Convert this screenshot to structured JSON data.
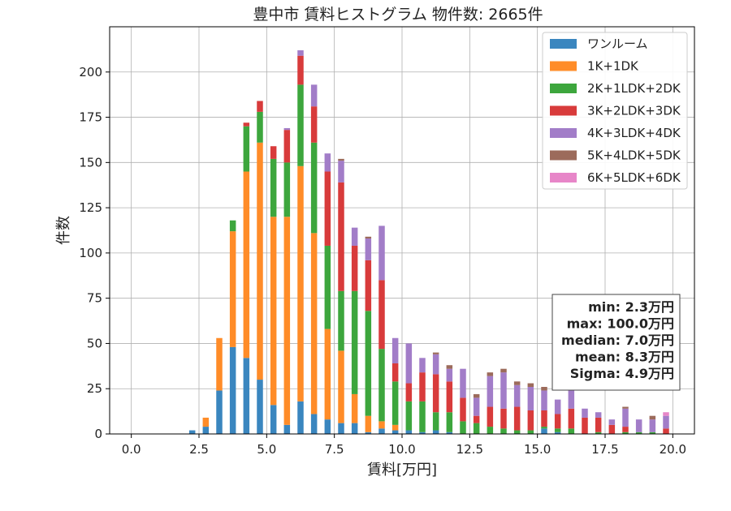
{
  "chart_data": {
    "type": "bar",
    "stacked": true,
    "title": "豊中市 賃料ヒストグラム 物件数: 2665件",
    "xlabel": "賃料[万円]",
    "ylabel": "件数",
    "xlim": [
      -0.8,
      20.8
    ],
    "ylim": [
      0,
      225
    ],
    "xticks": [
      0.0,
      2.5,
      5.0,
      7.5,
      10.0,
      12.5,
      15.0,
      17.5,
      20.0
    ],
    "xtick_labels": [
      "0.0",
      "2.5",
      "5.0",
      "7.5",
      "10.0",
      "12.5",
      "15.0",
      "17.5",
      "20.0"
    ],
    "yticks": [
      0,
      25,
      50,
      75,
      100,
      125,
      150,
      175,
      200
    ],
    "ytick_labels": [
      "0",
      "25",
      "50",
      "75",
      "100",
      "125",
      "150",
      "175",
      "200"
    ],
    "grid": true,
    "legend_position": "top-right",
    "bin_width": 0.25,
    "x": [
      2.0,
      2.25,
      2.5,
      2.75,
      3.0,
      3.25,
      3.5,
      3.75,
      4.0,
      4.25,
      4.5,
      4.75,
      5.0,
      5.25,
      5.5,
      5.75,
      6.0,
      6.25,
      6.5,
      6.75,
      7.0,
      7.25,
      7.5,
      7.75,
      8.0,
      8.25,
      8.5,
      8.75,
      9.0,
      9.25,
      9.5,
      9.75,
      10.0,
      10.25,
      10.5,
      10.75,
      11.0,
      11.25,
      11.5,
      11.75,
      12.0,
      12.25,
      12.5,
      12.75,
      13.0,
      13.25,
      13.5,
      13.75,
      14.0,
      14.25,
      14.5,
      14.75,
      15.0,
      15.25,
      15.5,
      15.75,
      16.0,
      16.25,
      16.5,
      16.75,
      17.0,
      17.25,
      17.5,
      17.75,
      18.0,
      18.25,
      18.5,
      18.75,
      19.0,
      19.25,
      19.5,
      19.75
    ],
    "series": [
      {
        "name": "ワンルーム",
        "color": "#3a86bf",
        "values": [
          0,
          2,
          0,
          4,
          0,
          24,
          0,
          48,
          0,
          42,
          0,
          30,
          0,
          16,
          0,
          5,
          0,
          18,
          0,
          11,
          0,
          8,
          0,
          6,
          0,
          6,
          0,
          1,
          0,
          3,
          0,
          2,
          0,
          2,
          0,
          1,
          0,
          2,
          0,
          1,
          0,
          0,
          0,
          0,
          0,
          0,
          0,
          0,
          0,
          0,
          0,
          0,
          0,
          3,
          0,
          1,
          0,
          0,
          0,
          0,
          0,
          0,
          0,
          0,
          0,
          0,
          0,
          0,
          0,
          0,
          0,
          0
        ]
      },
      {
        "name": "1K+1DK",
        "color": "#ff8c28",
        "values": [
          0,
          0,
          0,
          5,
          0,
          29,
          0,
          64,
          0,
          103,
          0,
          131,
          0,
          104,
          0,
          115,
          0,
          130,
          0,
          100,
          0,
          50,
          0,
          40,
          0,
          16,
          0,
          9,
          0,
          4,
          0,
          3,
          0,
          0,
          0,
          0,
          0,
          0,
          0,
          0,
          0,
          0,
          0,
          0,
          0,
          0,
          0,
          0,
          0,
          0,
          0,
          0,
          0,
          0,
          0,
          0,
          0,
          0,
          0,
          0,
          0,
          0,
          0,
          0,
          0,
          0,
          0,
          0,
          0,
          0,
          0,
          0
        ]
      },
      {
        "name": "2K+1LDK+2DK",
        "color": "#3da63d",
        "values": [
          0,
          0,
          0,
          0,
          0,
          0,
          0,
          6,
          0,
          25,
          0,
          17,
          0,
          32,
          0,
          30,
          0,
          45,
          0,
          50,
          0,
          46,
          0,
          33,
          0,
          57,
          0,
          58,
          0,
          40,
          0,
          24,
          0,
          16,
          0,
          17,
          0,
          10,
          0,
          11,
          0,
          7,
          0,
          6,
          0,
          4,
          0,
          3,
          0,
          2,
          0,
          2,
          0,
          1,
          0,
          2,
          0,
          3,
          0,
          0,
          0,
          1,
          0,
          0,
          0,
          1,
          0,
          1,
          0,
          1,
          0,
          0
        ]
      },
      {
        "name": "3K+2LDK+3DK",
        "color": "#d83b3b",
        "values": [
          0,
          0,
          0,
          0,
          0,
          0,
          0,
          0,
          0,
          2,
          0,
          6,
          0,
          7,
          0,
          18,
          0,
          16,
          0,
          20,
          0,
          41,
          0,
          60,
          0,
          25,
          0,
          28,
          0,
          38,
          0,
          10,
          0,
          10,
          0,
          16,
          0,
          21,
          0,
          17,
          0,
          13,
          0,
          4,
          0,
          11,
          0,
          11,
          0,
          13,
          0,
          11,
          0,
          9,
          0,
          8,
          0,
          11,
          0,
          9,
          0,
          8,
          0,
          5,
          0,
          3,
          0,
          0,
          0,
          0,
          0,
          3
        ]
      },
      {
        "name": "4K+3LDK+4DK",
        "color": "#a27dc8",
        "values": [
          0,
          0,
          0,
          0,
          0,
          0,
          0,
          0,
          0,
          0,
          0,
          0,
          0,
          0,
          0,
          1,
          0,
          3,
          0,
          12,
          0,
          10,
          0,
          12,
          0,
          10,
          0,
          12,
          0,
          30,
          0,
          14,
          0,
          22,
          0,
          8,
          0,
          11,
          0,
          7,
          0,
          16,
          0,
          10,
          0,
          17,
          0,
          20,
          0,
          12,
          0,
          13,
          0,
          11,
          0,
          8,
          0,
          10,
          0,
          5,
          0,
          3,
          0,
          3,
          0,
          10,
          0,
          7,
          0,
          7,
          0,
          7
        ]
      },
      {
        "name": "5K+4LDK+5DK",
        "color": "#9c6b5b",
        "values": [
          0,
          0,
          0,
          0,
          0,
          0,
          0,
          0,
          0,
          0,
          0,
          0,
          0,
          0,
          0,
          0,
          0,
          0,
          0,
          0,
          0,
          0,
          0,
          1,
          0,
          0,
          0,
          1,
          0,
          0,
          0,
          0,
          0,
          0,
          0,
          0,
          0,
          1,
          0,
          2,
          0,
          0,
          0,
          2,
          0,
          2,
          0,
          2,
          0,
          2,
          0,
          2,
          0,
          2,
          0,
          0,
          0,
          0,
          0,
          0,
          0,
          0,
          0,
          0,
          0,
          1,
          0,
          0,
          0,
          2,
          0,
          0
        ]
      },
      {
        "name": "6K+5LDK+6DK",
        "color": "#e786c8",
        "values": [
          0,
          0,
          0,
          0,
          0,
          0,
          0,
          0,
          0,
          0,
          0,
          0,
          0,
          0,
          0,
          0,
          0,
          0,
          0,
          0,
          0,
          0,
          0,
          0,
          0,
          0,
          0,
          0,
          0,
          0,
          0,
          0,
          0,
          0,
          0,
          0,
          0,
          0,
          0,
          0,
          0,
          0,
          0,
          0,
          0,
          0,
          0,
          0,
          0,
          0,
          0,
          0,
          0,
          0,
          0,
          0,
          0,
          0,
          0,
          0,
          0,
          0,
          0,
          0,
          0,
          0,
          0,
          0,
          0,
          0,
          0,
          2
        ]
      }
    ],
    "stats_box": [
      "min: 2.3万円",
      "max: 100.0万円",
      "median: 7.0万円",
      "mean: 8.3万円",
      "Sigma: 4.9万円"
    ]
  }
}
